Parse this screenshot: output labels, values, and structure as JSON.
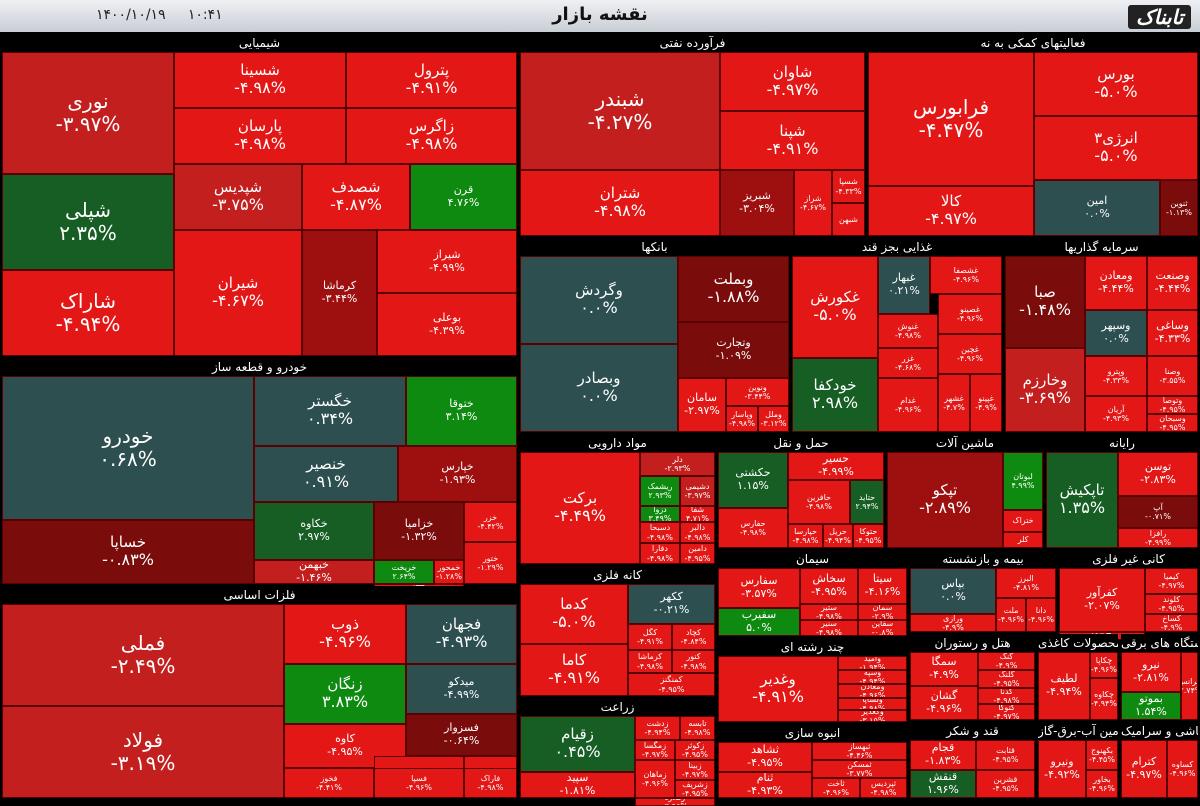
{
  "header": {
    "title": "نقشه بازار",
    "time": "۱۰:۴۱",
    "date": "۱۴۰۰/۱۰/۱۹",
    "logo": "تابناک"
  },
  "colors": {
    "red": "#e41717",
    "mid_red": "#c41f1f",
    "dark_red": "#9e1010",
    "maroon": "#7a0c0c",
    "green": "#0f8a10",
    "dark_green": "#165e24",
    "teal": "#2d4f4f"
  },
  "sectors": [
    {
      "title": "شیمیایی",
      "cells": [
        {
          "n": "نوری",
          "p": "-۳.۹۷%"
        },
        {
          "n": "شپلی",
          "p": "۲.۳۵%"
        },
        {
          "n": "شاراک",
          "p": "-۴.۹۴%"
        },
        {
          "n": "شسینا",
          "p": "-۴.۹۸%"
        },
        {
          "n": "پترول",
          "p": "-۴.۹۱%"
        },
        {
          "n": "پارسان",
          "p": "-۴.۹۸%"
        },
        {
          "n": "زاگرس",
          "p": "-۴.۹۸%"
        },
        {
          "n": "شپدیس",
          "p": "-۳.۷۵%"
        },
        {
          "n": "شصدف",
          "p": "-۴.۸۷%"
        },
        {
          "n": "قرن",
          "p": "۴.۷۶%"
        },
        {
          "n": "شیران",
          "p": "-۴.۶۷%"
        },
        {
          "n": "کرماشا",
          "p": "-۳.۴۴%"
        },
        {
          "n": "شیراز",
          "p": "-۴.۹۹%"
        },
        {
          "n": "بوعلی",
          "p": "-۴.۳۹%"
        }
      ]
    },
    {
      "title": "فرآورده نفتی",
      "cells": [
        {
          "n": "شبندر",
          "p": "-۴.۲۷%"
        },
        {
          "n": "شاوان",
          "p": "-۴.۹۷%"
        },
        {
          "n": "شپنا",
          "p": "-۴.۹۱%"
        },
        {
          "n": "شتران",
          "p": "-۴.۹۸%"
        },
        {
          "n": "شبریز",
          "p": "-۳.۰۴%"
        },
        {
          "n": "شراز",
          "p": "-۴.۶۷%"
        },
        {
          "n": "شسپا",
          "p": "-۴.۳۳%"
        },
        {
          "n": "شبهن",
          "p": ""
        }
      ]
    },
    {
      "title": "فعالیتهای کمکی به نه",
      "cells": [
        {
          "n": "فرابورس",
          "p": "-۴.۴۷%"
        },
        {
          "n": "بورس",
          "p": "-۵.۰%"
        },
        {
          "n": "انرژی۳",
          "p": "-۵.۰%"
        },
        {
          "n": "کالا",
          "p": "-۴.۹۷%"
        },
        {
          "n": "امین",
          "p": "۰.۰%"
        },
        {
          "n": "ثنوین",
          "p": "-۱.۱۳%"
        }
      ]
    },
    {
      "title": "بانکها",
      "cells": [
        {
          "n": "وگردش",
          "p": "۰.۰%"
        },
        {
          "n": "وبصادر",
          "p": "۰.۰%"
        },
        {
          "n": "وبملت",
          "p": "-۱.۸۸%"
        },
        {
          "n": "وتجارت",
          "p": "-۱.۰۹%"
        },
        {
          "n": "سامان",
          "p": "-۲.۹۷%"
        },
        {
          "n": "ونوین",
          "p": "-۳.۴۴%"
        },
        {
          "n": "وپاسار",
          "p": "-۴.۹۸%"
        },
        {
          "n": "وملل",
          "p": "-۳.۱۲%"
        }
      ]
    },
    {
      "title": "غذایی بجز قند",
      "cells": [
        {
          "n": "غکورش",
          "p": "-۵.۰%"
        },
        {
          "n": "خودکفا",
          "p": "۲.۹۸%"
        },
        {
          "n": "غبهار",
          "p": "۰.۲۱%"
        },
        {
          "n": "غشصفا",
          "p": "-۴.۹۶%"
        },
        {
          "n": "غنوش",
          "p": "-۴.۹۸%"
        },
        {
          "n": "غصینو",
          "p": "-۴.۹۶%"
        },
        {
          "n": "غزر",
          "p": "-۴.۶۸%"
        },
        {
          "n": "غچین",
          "p": "-۴.۹۶%"
        },
        {
          "n": "غدام",
          "p": "-۴.۹۶%"
        },
        {
          "n": "غشهر",
          "p": "-۴.۷%"
        },
        {
          "n": "غپینو",
          "p": "-۴.۹%"
        }
      ]
    },
    {
      "title": "سرمایه گذاریها",
      "cells": [
        {
          "n": "صبا",
          "p": "-۱.۴۸%"
        },
        {
          "n": "وخارزم",
          "p": "-۳.۶۹%"
        },
        {
          "n": "ومعادن",
          "p": "-۴.۴۴%"
        },
        {
          "n": "وصنعت",
          "p": "-۴.۴۴%"
        },
        {
          "n": "وسپهر",
          "p": "۰.۰%"
        },
        {
          "n": "وساغی",
          "p": "-۴.۳۳%"
        },
        {
          "n": "وپترو",
          "p": "-۴.۳۳%"
        },
        {
          "n": "وصنا",
          "p": "-۳.۵۵%"
        },
        {
          "n": "آریان",
          "p": "-۴.۹۳%"
        },
        {
          "n": "وتوصا",
          "p": "-۴.۹۵%"
        },
        {
          "n": "وسبحان",
          "p": "-۴.۹۵%"
        }
      ]
    },
    {
      "title": "خودرو و قطعه ساز",
      "cells": [
        {
          "n": "خودرو",
          "p": "۰.۶۸%"
        },
        {
          "n": "خساپا",
          "p": "-۰.۸۳%"
        },
        {
          "n": "خگستر",
          "p": "۰.۳۴%"
        },
        {
          "n": "ختوقا",
          "p": "۳.۱۴%"
        },
        {
          "n": "خنصیر",
          "p": "۰.۹۱%"
        },
        {
          "n": "خپارس",
          "p": "-۱.۹۳%"
        },
        {
          "n": "خکاوه",
          "p": "۲.۹۷%"
        },
        {
          "n": "خزامیا",
          "p": "-۱.۳۲%"
        },
        {
          "n": "خزر",
          "p": "-۴.۴۲%"
        },
        {
          "n": "خبهمن",
          "p": "-۱.۴۶%"
        },
        {
          "n": "خریخت",
          "p": "۲.۶۴%"
        },
        {
          "n": "ختور",
          "p": "-۱.۲۹%"
        },
        {
          "n": "خکار",
          "p": "-۰.۶۷%"
        },
        {
          "n": "خمحور",
          "p": "-۱.۲۸%"
        }
      ]
    },
    {
      "title": "فلزات اساسی",
      "cells": [
        {
          "n": "فملی",
          "p": "-۲.۴۹%"
        },
        {
          "n": "فولاد",
          "p": "-۳.۱۹%"
        },
        {
          "n": "ذوب",
          "p": "-۴.۹۶%"
        },
        {
          "n": "فجهان",
          "p": "-۴.۹۳%"
        },
        {
          "n": "زنگان",
          "p": "۳.۸۳%"
        },
        {
          "n": "میدکو",
          "p": "-۴.۹۹%"
        },
        {
          "n": "کاوه",
          "p": "-۴.۹۵%"
        },
        {
          "n": "فسزوار",
          "p": "-۰.۶۴%"
        },
        {
          "n": "فخوز",
          "p": "-۴.۴۱%"
        },
        {
          "n": "فایرا",
          "p": "-۴.۹۸%"
        },
        {
          "n": "فسرب",
          "p": "-۴.۹۵%"
        },
        {
          "n": "فسپا",
          "p": "-۴.۹۶%"
        },
        {
          "n": "فاراک",
          "p": "-۴.۹۸%"
        }
      ]
    },
    {
      "title": "مواد دارویی",
      "cells": [
        {
          "n": "برکت",
          "p": "-۴.۴۹%"
        },
        {
          "n": "دلر",
          "p": "-۲.۹۳%"
        },
        {
          "n": "ریشمک",
          "p": "۲.۹۳%"
        },
        {
          "n": "دشیمی",
          "p": "-۳.۹۷%"
        },
        {
          "n": "دزوا",
          "p": "۳.۴۹%"
        },
        {
          "n": "شفا",
          "p": "۴.۷۱%"
        },
        {
          "n": "دسبحا",
          "p": "-۴.۹۸%"
        },
        {
          "n": "دفارا",
          "p": "-۴.۹۸%"
        },
        {
          "n": "دالبر",
          "p": "-۴.۹۸%"
        },
        {
          "n": "دامین",
          "p": "-۴.۹۵%"
        }
      ]
    },
    {
      "title": "حمل و نقل",
      "cells": [
        {
          "n": "حکشتی",
          "p": "۱.۱۵%"
        },
        {
          "n": "حسیر",
          "p": "-۴.۹۹%"
        },
        {
          "n": "حافرین",
          "p": "-۴.۹۸%"
        },
        {
          "n": "حتاید",
          "p": "۲.۹۴%"
        },
        {
          "n": "حفارس",
          "p": "-۴.۹۸%"
        },
        {
          "n": "حپارسا",
          "p": "-۴.۹۸%"
        },
        {
          "n": "حریل",
          "p": "-۴.۹۴%"
        },
        {
          "n": "حتوکا",
          "p": "-۴.۹۵%"
        }
      ]
    },
    {
      "title": "ماشین آلات",
      "cells": [
        {
          "n": "تپکو",
          "p": "-۲.۸۹%"
        },
        {
          "n": "لبوتان",
          "p": "۴.۹۹%"
        },
        {
          "n": "ختراک",
          "p": ""
        },
        {
          "n": "کلر",
          "p": ""
        }
      ]
    },
    {
      "title": "رایانه",
      "cells": [
        {
          "n": "تاپکیش",
          "p": "۱.۳۵%"
        },
        {
          "n": "توسن",
          "p": "-۲.۸۳%"
        },
        {
          "n": "آپ",
          "p": "-۰.۷۱%"
        },
        {
          "n": "رافزا",
          "p": "-۴.۹۹%"
        }
      ]
    },
    {
      "title": "کانه فلزی",
      "cells": [
        {
          "n": "کدما",
          "p": "-۵.۰%"
        },
        {
          "n": "کاما",
          "p": "-۴.۹۱%"
        },
        {
          "n": "ککهر",
          "p": "-۰.۲۱%"
        },
        {
          "n": "کگل",
          "p": "-۴.۹۱%"
        },
        {
          "n": "کچاد",
          "p": "-۴.۸۴%"
        },
        {
          "n": "کرماشا",
          "p": "-۴.۹۸%"
        },
        {
          "n": "کنور",
          "p": "-۴.۹۸%"
        },
        {
          "n": "کمنگنز",
          "p": "-۴.۹۵%"
        }
      ]
    },
    {
      "title": "سیمان",
      "cells": [
        {
          "n": "سفارس",
          "p": "-۳.۵۷%"
        },
        {
          "n": "سخاش",
          "p": "-۴.۹۵%"
        },
        {
          "n": "سیتا",
          "p": "-۴.۱۶%"
        },
        {
          "n": "سفیرب",
          "p": "۵.۰%"
        },
        {
          "n": "ستیر",
          "p": "-۴.۹۸%"
        },
        {
          "n": "سنیر",
          "p": "-۴.۹۸%"
        },
        {
          "n": "سمان",
          "p": "-۲.۹%"
        },
        {
          "n": "سقاین",
          "p": "-۰.۸%"
        }
      ]
    },
    {
      "title": "بیمه و بازنشسته",
      "cells": [
        {
          "n": "بپاس",
          "p": "۰.۰%"
        },
        {
          "n": "البرز",
          "p": "-۴.۸۱%"
        },
        {
          "n": "ورازی",
          "p": "-۴.۹%"
        },
        {
          "n": "ملت",
          "p": "-۴.۹۶%"
        },
        {
          "n": "دانا",
          "p": "-۴.۹۶%"
        }
      ]
    },
    {
      "title": "کانی غیر فلزی",
      "cells": [
        {
          "n": "کفرآور",
          "p": "-۲.۰۷%"
        },
        {
          "n": "کیمیا",
          "p": "-۴.۹۷%"
        },
        {
          "n": "کلوند",
          "p": "-۴.۹۵%"
        },
        {
          "n": "کرازی",
          "p": "-۴.۹۹%"
        },
        {
          "n": "کساخ",
          "p": "-۴.۹%"
        }
      ]
    },
    {
      "title": "چند رشته ای",
      "cells": [
        {
          "n": "وغدیر",
          "p": "-۴.۹۱%"
        },
        {
          "n": "وامید",
          "p": "-۱.۹۴%"
        },
        {
          "n": "وسپه",
          "p": "-۴.۹۴%"
        },
        {
          "n": "ومعادن",
          "p": "-۴.۹۶%"
        },
        {
          "n": "ولساپا",
          "p": "-۴.۹۸%"
        },
        {
          "n": "وکغدیر",
          "p": "-۳.۱۵%"
        }
      ]
    },
    {
      "title": "هتل و رستوران",
      "cells": [
        {
          "n": "سمگا",
          "p": "-۴.۹%"
        },
        {
          "n": "گشان",
          "p": "-۴.۹۶%"
        },
        {
          "n": "گنگ",
          "p": "-۴.۹%"
        },
        {
          "n": "گلنگ",
          "p": "-۴.۹۵%"
        },
        {
          "n": "گدنا",
          "p": "-۴.۹۸%"
        },
        {
          "n": "گتوکا",
          "p": "-۴.۹۷%"
        }
      ]
    },
    {
      "title": "محصولات کاغذی",
      "cells": [
        {
          "n": "لطیف",
          "p": "-۴.۹۴%"
        },
        {
          "n": "چکاپا",
          "p": "-۴.۹۶%"
        },
        {
          "n": "چکاوه",
          "p": "-۴.۹۴%"
        }
      ]
    },
    {
      "title": "دستگاه های برقی",
      "cells": [
        {
          "n": "نیرو",
          "p": "-۲.۸۱%"
        },
        {
          "n": "بموتو",
          "p": "۱.۵۴%"
        },
        {
          "n": "بترانس",
          "p": "-۲.۷۴%"
        }
      ]
    },
    {
      "title": "زراعت",
      "cells": [
        {
          "n": "زقیام",
          "p": "۰.۴۵%"
        },
        {
          "n": "سپید",
          "p": "-۱.۸۱%"
        },
        {
          "n": "زدشت",
          "p": "-۴.۹۴%"
        },
        {
          "n": "تابسه",
          "p": "-۴.۹۸%"
        },
        {
          "n": "زمگسا",
          "p": "-۴.۹۷%"
        },
        {
          "n": "زکوثر",
          "p": "-۴.۹۵%"
        },
        {
          "n": "زماهان",
          "p": "-۴.۹۶%"
        },
        {
          "n": "زبینا",
          "p": "-۴.۹۷%"
        },
        {
          "n": "زشریف",
          "p": "-۴.۹۵%"
        },
        {
          "n": "زملارد",
          "p": "-۴.۹۶%"
        }
      ]
    },
    {
      "title": "انبوه سازی",
      "cells": [
        {
          "n": "ثشاهد",
          "p": "-۴.۹۵%"
        },
        {
          "n": "ثنام",
          "p": "-۴.۹۳%"
        },
        {
          "n": "ثبهساز",
          "p": "-۴.۴۶%"
        },
        {
          "n": "ثمسکن",
          "p": "-۳.۷۷%"
        },
        {
          "n": "ثاخت",
          "p": "-۴.۹۶%"
        },
        {
          "n": "ثپردیس",
          "p": "-۴.۹۸%"
        }
      ]
    },
    {
      "title": "قند و شکر",
      "cells": [
        {
          "n": "قجام",
          "p": "-۱.۸۳%"
        },
        {
          "n": "قنقش",
          "p": "۱.۹۶%"
        },
        {
          "n": "قثابت",
          "p": "-۴.۹۵%"
        },
        {
          "n": "قشرین",
          "p": "-۴.۹۵%"
        }
      ]
    },
    {
      "title": "تامین آب-برق-گاز",
      "cells": [
        {
          "n": "ونیرو",
          "p": "-۴.۹۲%"
        },
        {
          "n": "بکهنوج",
          "p": "-۴.۴۵%"
        },
        {
          "n": "بخاور",
          "p": "-۴.۹۶%"
        }
      ]
    },
    {
      "title": "کاشی و سرامیک",
      "cells": [
        {
          "n": "کترام",
          "p": "-۴.۹۷%"
        },
        {
          "n": "کساوه",
          "p": "-۴.۹۶%"
        }
      ]
    }
  ]
}
